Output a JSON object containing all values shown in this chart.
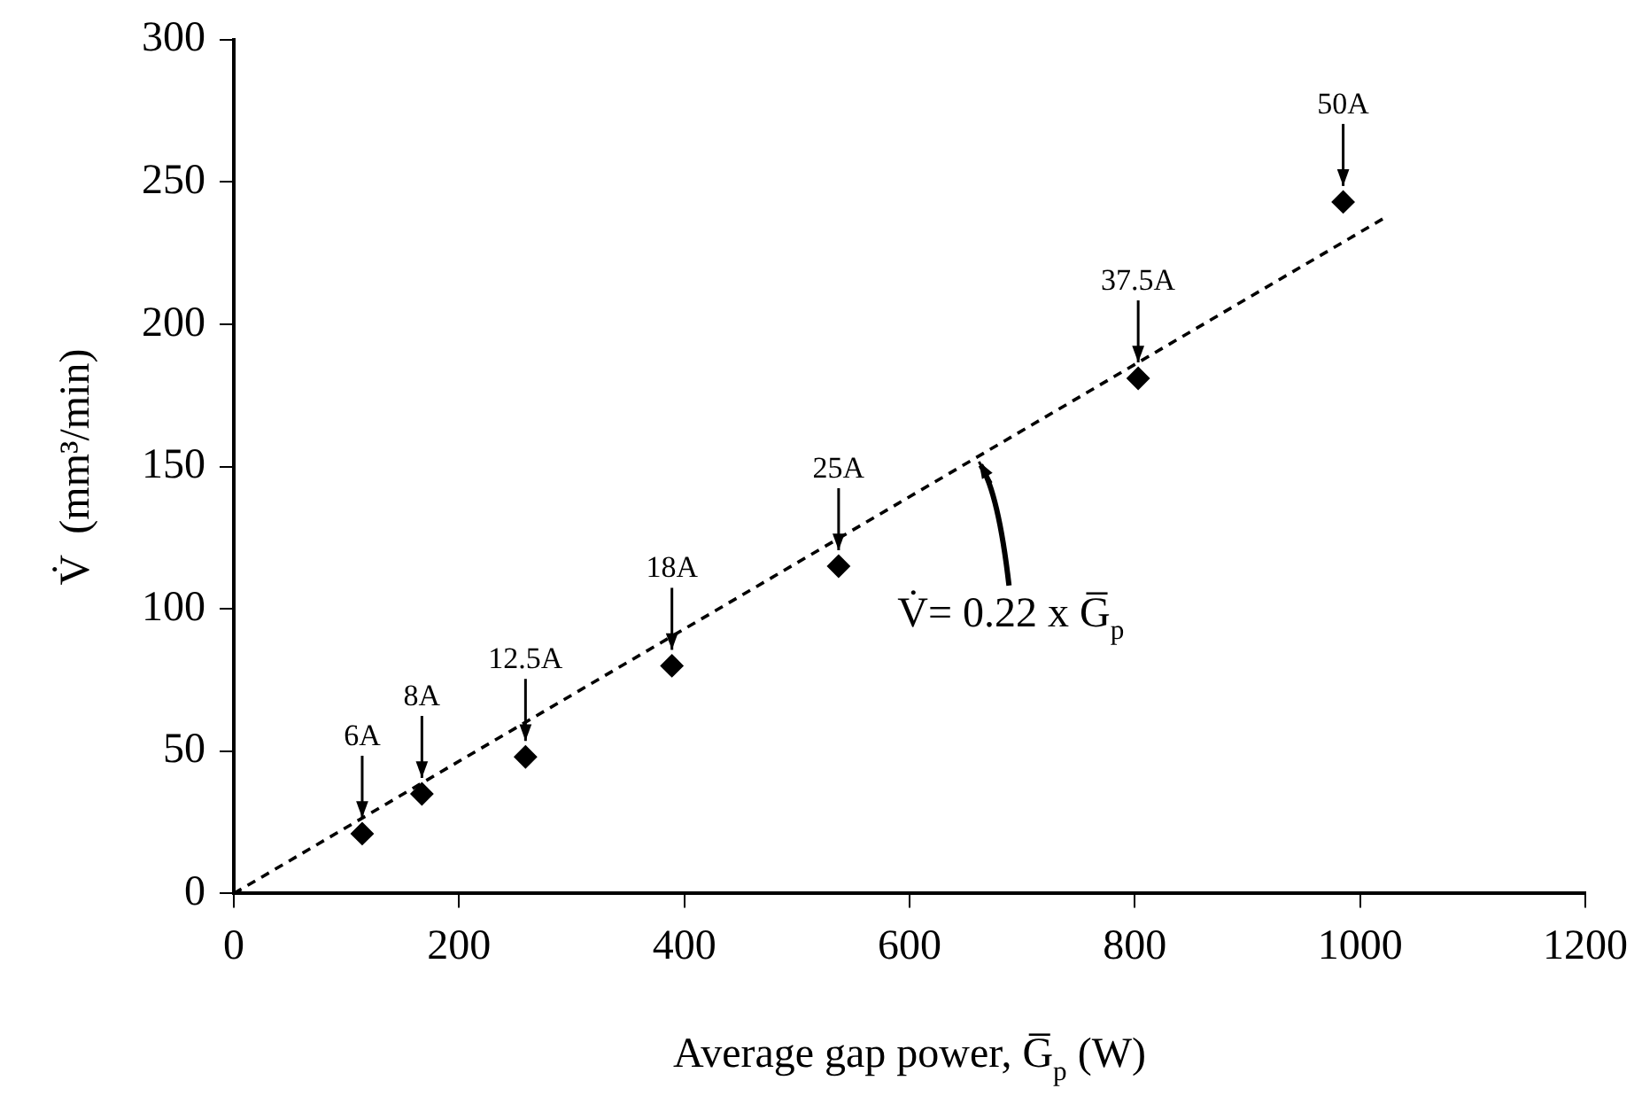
{
  "chart_data": {
    "type": "scatter",
    "xlabel": "Average gap power, G̅$_{p}$ (W)",
    "ylabel": "V̇  (mm³/min)",
    "x": [
      114,
      167,
      259,
      389,
      537,
      803,
      985
    ],
    "series": [
      {
        "color": "#000000",
        "values": [
          21,
          35,
          48,
          80,
          115,
          181,
          243
        ],
        "marker": "diamond"
      },
      {
        "type": "line",
        "color": "#000000",
        "x": [
          0,
          1020
        ],
        "values": [
          0,
          237
        ],
        "line_style": "dashed"
      }
    ],
    "annotations": [
      {
        "text": "6A",
        "x": 114,
        "y": 21
      },
      {
        "text": "8A",
        "x": 167,
        "y": 35
      },
      {
        "text": "12.5A",
        "x": 259,
        "y": 48
      },
      {
        "text": "18A",
        "x": 389,
        "y": 80
      },
      {
        "text": "25A",
        "x": 537,
        "y": 115
      },
      {
        "text": "37.5A",
        "x": 803,
        "y": 181
      },
      {
        "text": "50A",
        "x": 985,
        "y": 243
      },
      {
        "text": "V̇= 0.22 x G̅$_{p}$",
        "x": 660,
        "y": 153
      }
    ],
    "xlim": [
      0,
      1200
    ],
    "xticks": [
      0,
      200,
      400,
      600,
      800,
      1000,
      1200
    ],
    "ylim": [
      0,
      300
    ],
    "yticks": [
      0,
      50,
      100,
      150,
      200,
      250,
      300
    ],
    "grid": false,
    "legend": false
  }
}
